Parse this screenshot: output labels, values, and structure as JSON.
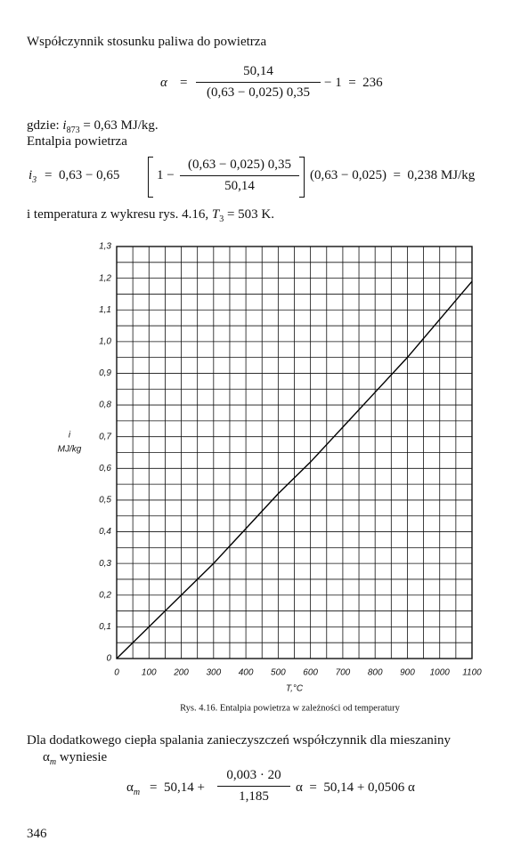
{
  "p1": "Współczynnik stosunku paliwa do powietrza",
  "eq1": {
    "lhs": "α",
    "eq": "=",
    "num": "50,14",
    "den": "(0,63 − 0,025) 0,35",
    "rest": "− 1  =  236"
  },
  "where": {
    "prefix": "gdzie:",
    "sym": "i",
    "sub": "873",
    "rest": "= 0,63 MJ/kg."
  },
  "p2": "Entalpia powietrza",
  "eq2": {
    "sym": "i",
    "sub": "3",
    "a": "=  0,63 − 0,65",
    "b": "1 −",
    "num": "(0,63 − 0,025) 0,35",
    "den": "50,14",
    "c": "(0,63 − 0,025)  =  0,238 MJ/kg"
  },
  "p3": {
    "a": "i temperatura z wykresu rys. 4.16,",
    "sym": "T",
    "sub": "3",
    "b": "= 503 K."
  },
  "chart_data": {
    "type": "line",
    "y_label": "i",
    "y_unit": "MJ/kg",
    "x_label": "T,°C",
    "caption": "Rys. 4.16. Entalpia powietrza w zależności od temperatury",
    "x": [
      0,
      100,
      200,
      300,
      400,
      500,
      600,
      700,
      800,
      900,
      1000,
      1100
    ],
    "values": [
      0,
      0.1,
      0.2,
      0.3,
      0.41,
      0.52,
      0.62,
      0.73,
      0.84,
      0.95,
      1.07,
      1.19
    ],
    "color": "#000000",
    "xlim": [
      0,
      1100
    ],
    "ylim": [
      0,
      1.3
    ],
    "xticks": [
      0,
      100,
      200,
      300,
      400,
      500,
      600,
      700,
      800,
      900,
      1000,
      1100
    ],
    "yticks": [
      0,
      {
        "value": 0.1,
        "label": "0,1"
      },
      {
        "value": 0.2,
        "label": "0,2"
      },
      {
        "value": 0.3,
        "label": "0,3"
      },
      {
        "value": 0.4,
        "label": "0,4"
      },
      {
        "value": 0.5,
        "label": "0,5"
      },
      {
        "value": 0.6,
        "label": "0,6"
      },
      {
        "value": 0.7,
        "label": "0,7"
      },
      {
        "value": 0.8,
        "label": "0,8"
      },
      {
        "value": 0.9,
        "label": "0,9"
      },
      {
        "value": 1.0,
        "label": "1,0"
      },
      {
        "value": 1.1,
        "label": "1,1"
      },
      {
        "value": 1.2,
        "label": "1,2"
      },
      {
        "value": 1.3,
        "label": "1,3"
      }
    ],
    "grid": true
  },
  "p4": {
    "a": "Dla dodatkowego ciepła spalania zanieczyszczeń współczynnik dla mieszaniny",
    "sym": "α",
    "sub": "m",
    "b": "wyniesie"
  },
  "eq3": {
    "sym": "α",
    "sub": "m",
    "a": "=  50,14 +",
    "num": "0,003 · 20",
    "den": "1,185",
    "b": "α  =  50,14 + 0,0506 α"
  },
  "page_number": "346"
}
